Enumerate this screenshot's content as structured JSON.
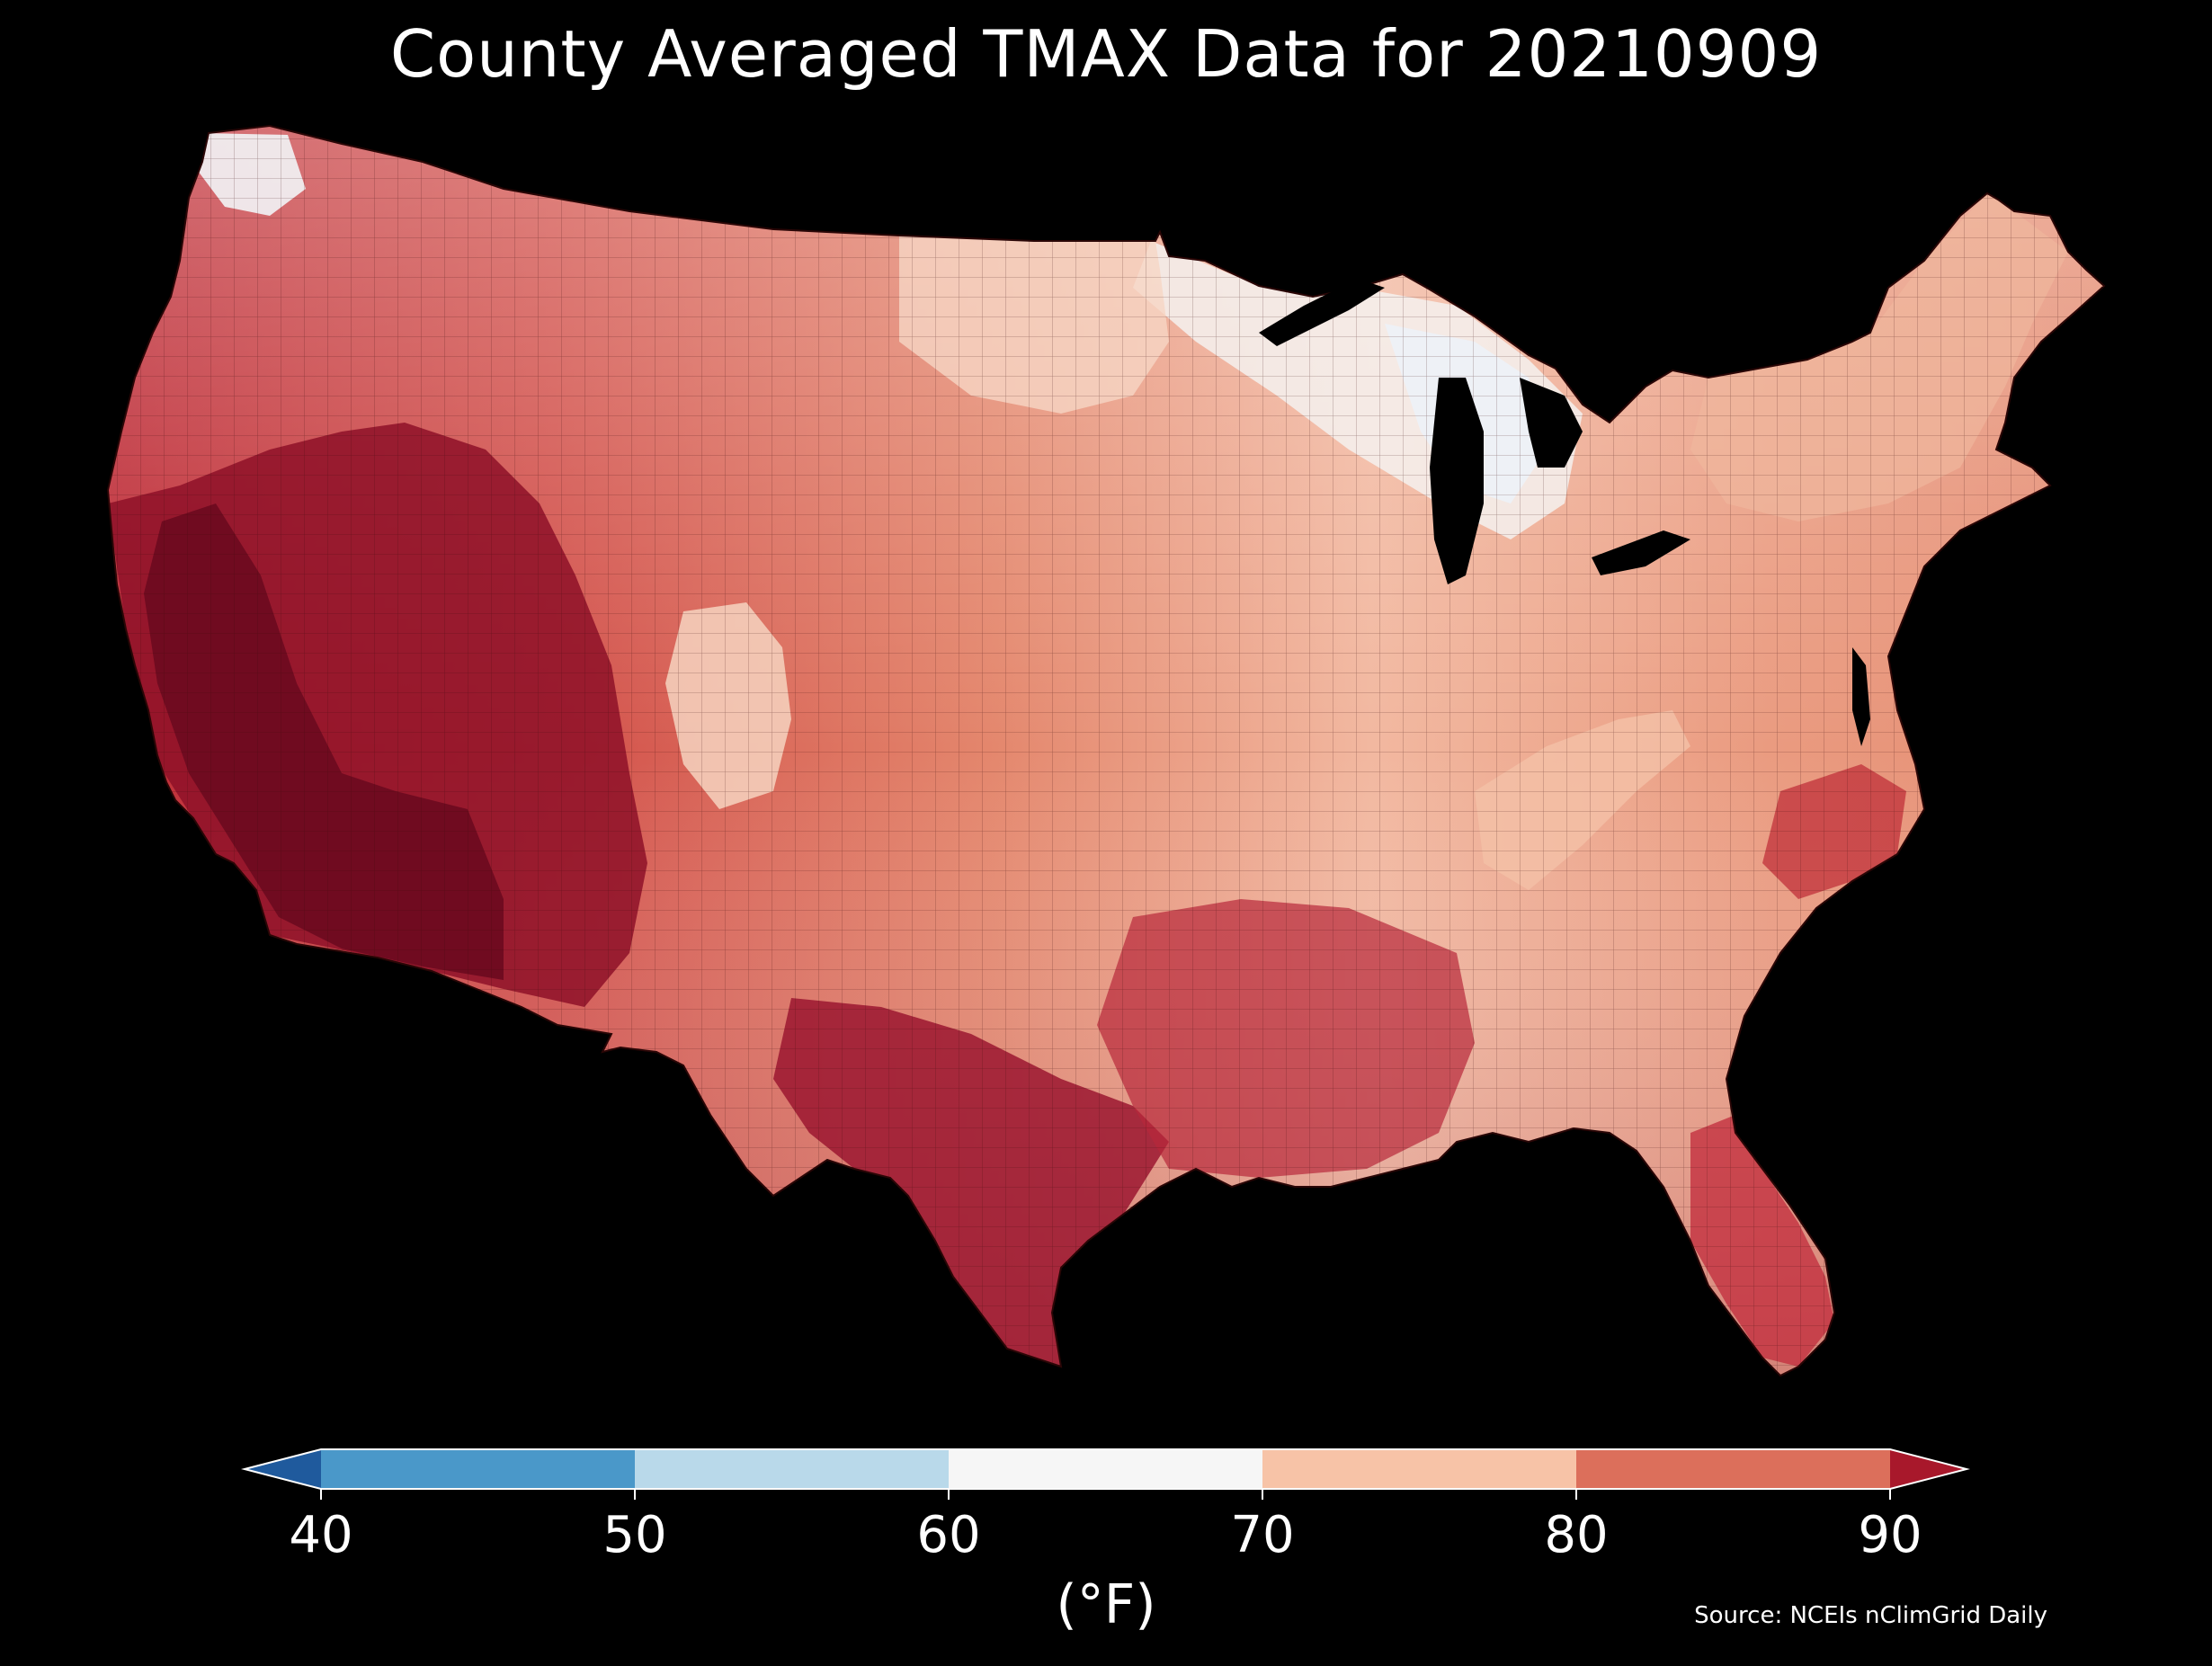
{
  "title": "County Averaged TMAX Data for 20210909",
  "colorbar": {
    "unit_label": "(°F)",
    "ticks": [
      "40",
      "50",
      "60",
      "70",
      "80",
      "90"
    ],
    "bins": [
      {
        "from": 40,
        "to": 50,
        "color": "#4a98c9"
      },
      {
        "from": 50,
        "to": 60,
        "color": "#b9d9ea"
      },
      {
        "from": 60,
        "to": 70,
        "color": "#f6f6f6"
      },
      {
        "from": 70,
        "to": 80,
        "color": "#f7c3a7"
      },
      {
        "from": 80,
        "to": 90,
        "color": "#dc6f5b"
      }
    ],
    "under_color": "#1f5a9d",
    "over_color": "#a8182b"
  },
  "source": "Source: NCEIs nClimGrid Daily",
  "map_colors": {
    "coolest": "#edf2f7",
    "mild": "#f4c7b0",
    "warm": "#de7a64",
    "hot": "#c0303a",
    "hottest": "#6c0a1f",
    "water": "#000000"
  }
}
